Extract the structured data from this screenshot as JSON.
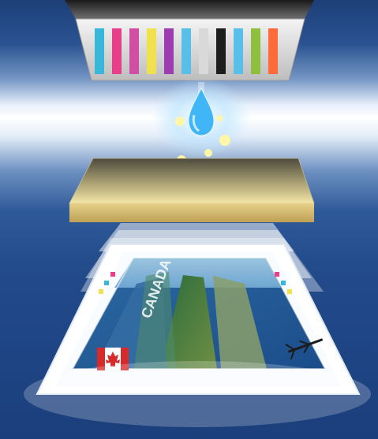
{
  "scene": {
    "ink_colors": [
      "#37b7d9",
      "#e93f8a",
      "#d14fa3",
      "#f2e14e",
      "#9d3bb0",
      "#58c0e8",
      "#8fbf3f",
      "#ff6a3a",
      "#d9d9d9",
      "#1d1d1d"
    ],
    "droplet_color": "#5bc4ff",
    "top_slab_color": "#f1e3a5",
    "print_title": "CANADA",
    "flag_colors": [
      "#d72a2a",
      "#ffffff"
    ]
  }
}
